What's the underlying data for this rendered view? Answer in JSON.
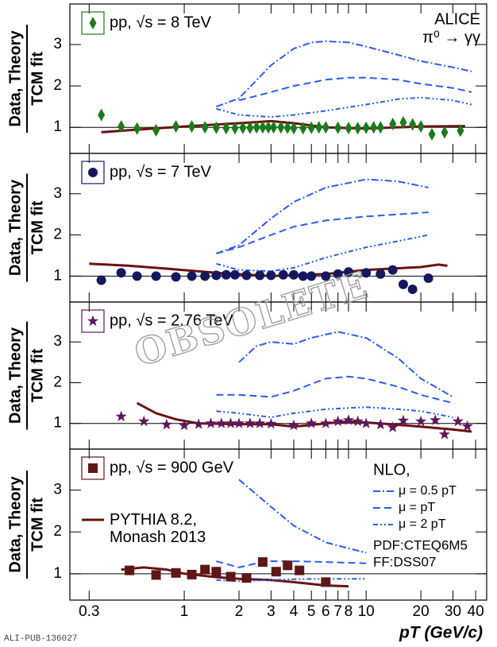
{
  "footer": "ALI-PUB-136027",
  "watermark": "OBSOLETE",
  "chart_data": [
    {
      "type": "line",
      "xlog": true,
      "xlim": [
        0.235,
        46
      ],
      "ylim": [
        0.37,
        3.98
      ],
      "yticks": [
        1,
        2,
        3
      ],
      "reference_line": 1,
      "ylabel": [
        "Data, Theory",
        "TCM fit"
      ],
      "annotations": [
        "ALICE",
        "π⁰ → γγ"
      ],
      "series": [
        {
          "name": "pp, √s = 8 TeV",
          "color": "#1b7a1b",
          "marker": "diamond",
          "x": [
            0.35,
            0.45,
            0.55,
            0.7,
            0.9,
            1.1,
            1.3,
            1.5,
            1.7,
            1.9,
            2.1,
            2.3,
            2.5,
            2.7,
            2.9,
            3.1,
            3.4,
            3.7,
            4.0,
            4.5,
            5,
            5.5,
            6,
            7,
            8,
            9,
            10,
            11,
            12,
            14,
            16,
            18,
            20,
            23,
            27,
            33
          ],
          "values": [
            1.3,
            1.02,
            0.97,
            0.93,
            1.02,
            1.02,
            1.0,
            0.99,
            0.98,
            0.98,
            0.99,
            0.99,
            1.0,
            1.0,
            1.0,
            1.0,
            1.0,
            0.99,
            0.98,
            0.98,
            0.99,
            1.0,
            1.0,
            0.99,
            0.98,
            0.98,
            0.99,
            1.0,
            1.0,
            1.08,
            1.12,
            1.07,
            1.02,
            0.83,
            0.88,
            0.92
          ]
        },
        {
          "color": "#6b1212",
          "line": "solid",
          "x": [
            0.35,
            0.5,
            1,
            2,
            3,
            4,
            6,
            10,
            20,
            35
          ],
          "values": [
            0.88,
            0.93,
            1.02,
            1.1,
            1.15,
            1.1,
            1.0,
            0.97,
            1.02,
            1.03
          ]
        },
        {
          "color": "#2a5cf0",
          "line": "dashdot",
          "x": [
            1.5,
            2,
            3,
            4,
            5,
            6,
            8,
            10,
            15,
            20,
            30,
            38
          ],
          "values": [
            1.5,
            1.7,
            2.5,
            2.9,
            3.05,
            3.08,
            3.05,
            2.95,
            2.75,
            2.6,
            2.45,
            2.35
          ]
        },
        {
          "color": "#2a5cf0",
          "line": "dash",
          "x": [
            2,
            3,
            4,
            6,
            8,
            10,
            15,
            20,
            30,
            38
          ],
          "values": [
            1.65,
            1.85,
            2.0,
            2.15,
            2.2,
            2.2,
            2.15,
            2.05,
            1.95,
            1.85
          ]
        },
        {
          "color": "#2a5cf0",
          "line": "dashdotdot",
          "x": [
            1.5,
            2,
            3,
            4,
            6,
            10,
            15,
            20,
            30,
            38
          ],
          "values": [
            1.45,
            1.3,
            1.25,
            1.3,
            1.4,
            1.55,
            1.68,
            1.72,
            1.65,
            1.55
          ]
        }
      ]
    },
    {
      "type": "line",
      "xlog": true,
      "xlim": [
        0.235,
        46
      ],
      "ylim": [
        0.37,
        3.98
      ],
      "yticks": [
        1,
        2,
        3
      ],
      "reference_line": 1,
      "ylabel": [
        "Data, Theory",
        "TCM fit"
      ],
      "series": [
        {
          "name": "pp, √s = 7 TeV",
          "color": "#16185e",
          "marker": "circle",
          "x": [
            0.35,
            0.45,
            0.55,
            0.7,
            0.9,
            1.1,
            1.3,
            1.5,
            1.7,
            1.9,
            2.2,
            2.6,
            3.0,
            3.5,
            4,
            4.5,
            5,
            6,
            7,
            8,
            10,
            12,
            14,
            16,
            18,
            22
          ],
          "values": [
            0.9,
            1.08,
            1.0,
            1.0,
            0.98,
            1.0,
            1.0,
            1.02,
            1.03,
            1.03,
            1.02,
            1.02,
            1.02,
            1.03,
            1.03,
            1.0,
            1.0,
            1.0,
            1.05,
            1.1,
            1.08,
            1.05,
            1.15,
            0.8,
            0.68,
            0.95
          ]
        },
        {
          "color": "#6b1212",
          "line": "solid",
          "x": [
            0.3,
            0.5,
            0.8,
            1.5,
            3,
            6,
            10,
            20,
            25,
            28
          ],
          "values": [
            1.3,
            1.25,
            1.18,
            1.08,
            1.0,
            1.05,
            1.15,
            1.22,
            1.28,
            1.25
          ]
        },
        {
          "color": "#2a5cf0",
          "line": "dashdot",
          "x": [
            1.5,
            2,
            3,
            4,
            6,
            10,
            15,
            22
          ],
          "values": [
            1.55,
            1.75,
            2.4,
            2.8,
            3.15,
            3.35,
            3.3,
            3.15
          ]
        },
        {
          "color": "#2a5cf0",
          "line": "dash",
          "x": [
            1.5,
            2,
            3,
            4,
            6,
            10,
            15,
            22
          ],
          "values": [
            1.55,
            1.7,
            2.0,
            2.2,
            2.35,
            2.45,
            2.5,
            2.55
          ]
        },
        {
          "color": "#2a5cf0",
          "line": "dashdotdot",
          "x": [
            1.5,
            2,
            3,
            4,
            6,
            10,
            15,
            22
          ],
          "values": [
            1.3,
            1.15,
            1.12,
            1.2,
            1.45,
            1.7,
            1.85,
            2.0
          ]
        }
      ]
    },
    {
      "type": "line",
      "xlog": true,
      "xlim": [
        0.235,
        46
      ],
      "ylim": [
        0.37,
        3.98
      ],
      "yticks": [
        1,
        2,
        3
      ],
      "reference_line": 1,
      "ylabel": [
        "Data, Theory",
        "TCM fit"
      ],
      "series": [
        {
          "name": "pp, √s = 2.76 TeV",
          "color": "#5e165e",
          "marker": "star",
          "x": [
            0.45,
            0.6,
            0.8,
            1,
            1.2,
            1.4,
            1.6,
            1.8,
            2,
            2.3,
            2.6,
            3,
            4,
            5,
            6,
            7,
            8,
            9,
            10,
            12,
            14,
            16,
            20,
            24,
            27,
            32,
            36
          ],
          "values": [
            1.17,
            1.05,
            0.97,
            0.95,
            0.98,
            1.0,
            1.0,
            1.0,
            1.0,
            1.0,
            1.0,
            0.99,
            0.95,
            1.0,
            1.0,
            1.05,
            1.08,
            1.05,
            1.0,
            0.97,
            0.9,
            1.07,
            1.05,
            1.08,
            0.73,
            1.05,
            0.93
          ]
        },
        {
          "color": "#6b1212",
          "line": "solid",
          "x": [
            0.55,
            0.7,
            0.9,
            1.2,
            2,
            3,
            4,
            6,
            8,
            12,
            20,
            30,
            38
          ],
          "values": [
            1.5,
            1.25,
            1.1,
            1.0,
            0.98,
            0.98,
            0.92,
            1.0,
            1.05,
            1.0,
            0.92,
            0.85,
            0.8
          ]
        },
        {
          "color": "#2a5cf0",
          "line": "dashdot",
          "x": [
            2,
            2.5,
            3,
            4,
            5,
            7,
            10,
            15,
            20,
            30
          ],
          "values": [
            2.5,
            2.9,
            3.0,
            2.95,
            3.1,
            3.25,
            3.1,
            2.6,
            2.1,
            1.65
          ]
        },
        {
          "color": "#2a5cf0",
          "line": "dash",
          "x": [
            1.5,
            2,
            3,
            4,
            6,
            8,
            10,
            15,
            20,
            30
          ],
          "values": [
            1.7,
            1.7,
            1.65,
            1.8,
            2.1,
            2.15,
            2.1,
            1.9,
            1.7,
            1.5
          ]
        },
        {
          "color": "#2a5cf0",
          "line": "dashdotdot",
          "x": [
            1.5,
            2,
            3,
            4,
            6,
            10,
            15,
            20,
            30
          ],
          "values": [
            1.3,
            1.25,
            1.15,
            1.25,
            1.35,
            1.4,
            1.35,
            1.3,
            1.15
          ]
        }
      ]
    },
    {
      "type": "line",
      "xlog": true,
      "xlim": [
        0.235,
        46
      ],
      "ylim": [
        0.37,
        3.98
      ],
      "yticks": [
        1,
        2,
        3
      ],
      "reference_line": 1,
      "xticks": [
        0.3,
        1,
        2,
        3,
        4,
        5,
        6,
        7,
        8,
        10,
        20,
        30,
        40
      ],
      "xlabel": "pT (GeV/c)",
      "ylabel": [
        "Data, Theory",
        "TCM fit"
      ],
      "legend_title": "NLO,",
      "notes": [
        "PDF:CTEQ6M5",
        "FF:DSS07"
      ],
      "series": [
        {
          "name": "pp, √s = 900 GeV",
          "color": "#5e1616",
          "marker": "square",
          "x": [
            0.5,
            0.7,
            0.9,
            1.1,
            1.3,
            1.5,
            1.8,
            2.2,
            2.7,
            3.2,
            3.7,
            4.3,
            6
          ],
          "values": [
            1.08,
            0.97,
            1.02,
            0.98,
            1.1,
            1.05,
            0.93,
            0.9,
            1.28,
            1.05,
            1.2,
            1.08,
            0.8
          ]
        },
        {
          "name": "PYTHIA 8.2, Monash 2013",
          "color": "#6b1212",
          "line": "solid",
          "x": [
            0.45,
            0.6,
            0.8,
            1,
            1.5,
            2,
            3,
            4,
            6,
            8
          ],
          "values": [
            1.1,
            1.15,
            1.1,
            1.0,
            0.92,
            0.88,
            0.85,
            0.8,
            0.72,
            0.7
          ]
        },
        {
          "name": "μ = 0.5 pT",
          "color": "#2a5cf0",
          "line": "dashdot",
          "x": [
            2,
            3,
            4,
            6,
            10
          ],
          "values": [
            3.25,
            2.6,
            2.15,
            1.75,
            1.5
          ]
        },
        {
          "name": "μ = pT",
          "color": "#2a5cf0",
          "line": "dash",
          "x": [
            1.5,
            2,
            2.5,
            3,
            4,
            6,
            10
          ],
          "values": [
            1.3,
            1.15,
            1.25,
            1.3,
            1.3,
            1.28,
            1.25
          ]
        },
        {
          "name": "μ = 2 pT",
          "color": "#2a5cf0",
          "line": "dashdotdot",
          "x": [
            1.5,
            2,
            3,
            4,
            6,
            10
          ],
          "values": [
            0.85,
            0.82,
            0.85,
            0.87,
            0.88,
            0.88
          ]
        }
      ]
    }
  ]
}
